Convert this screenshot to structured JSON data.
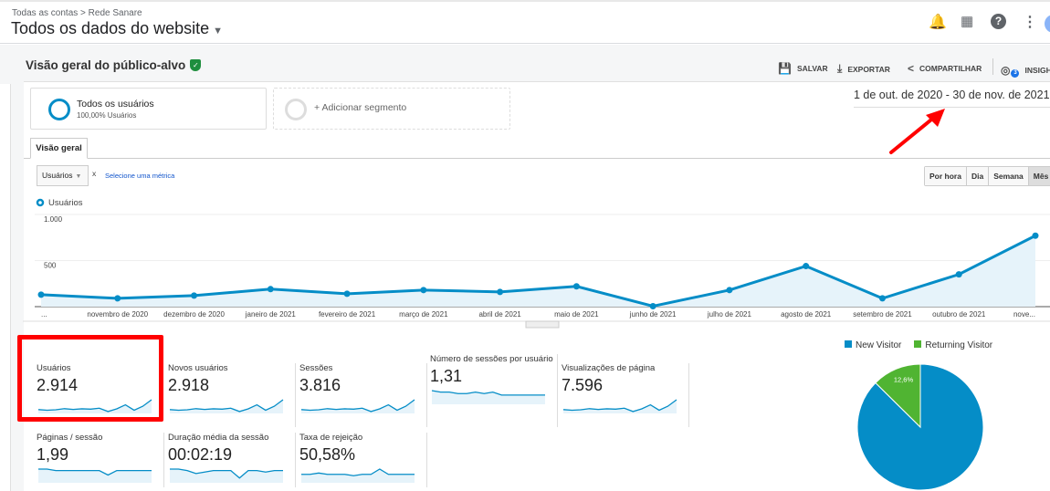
{
  "header": {
    "breadcrumb": "Todas as contas > Rede Sanare",
    "view_title": "Todos os dados do website",
    "icons": [
      "bell-icon",
      "apps-icon",
      "help-icon",
      "more-vert-icon",
      "avatar"
    ]
  },
  "page": {
    "title": "Visão geral do público-alvo",
    "toolbar": {
      "save": "SALVAR",
      "export": "EXPORTAR",
      "share": "COMPARTILHAR",
      "insights": "INSIGHTS",
      "insights_badge": "3"
    }
  },
  "segments": {
    "all_users": "Todos os usuários",
    "all_users_pct": "100,00% Usuários",
    "add": "+ Adicionar segmento"
  },
  "date_range": "1 de out. de 2020 - 30 de nov. de 2021",
  "tabs": [
    {
      "label": "Visão geral",
      "active": true
    }
  ],
  "metric_selector": {
    "selected": "Usuários",
    "remove": "x",
    "second": "Selecione uma métrica"
  },
  "granularity": [
    {
      "label": "Por hora"
    },
    {
      "label": "Dia"
    },
    {
      "label": "Semana"
    },
    {
      "label": "Mês",
      "active": true
    }
  ],
  "colors": {
    "accent": "#058dc7",
    "returning": "#50b432",
    "annotation": "#ff0000"
  },
  "metrics": [
    {
      "label": "Usuários",
      "value": "2.914",
      "highlighted": true
    },
    {
      "label": "Novos usuários",
      "value": "2.918"
    },
    {
      "label": "Sessões",
      "value": "3.816"
    },
    {
      "label": "Número de sessões por usuário",
      "value": "1,31"
    },
    {
      "label": "Visualizações de página",
      "value": "7.596"
    },
    {
      "label": "Páginas / sessão",
      "value": "1,99"
    },
    {
      "label": "Duração média da sessão",
      "value": "00:02:19"
    },
    {
      "label": "Taxa de rejeição",
      "value": "50,58%"
    }
  ],
  "chart_data": [
    {
      "type": "line",
      "legend": "Usuários",
      "categories": [
        "...",
        "novembro de 2020",
        "dezembro de 2020",
        "janeiro de 2021",
        "fevereiro de 2021",
        "março de 2021",
        "abril de 2021",
        "maio de 2021",
        "junho de 2021",
        "julho de 2021",
        "agosto de 2021",
        "setembro de 2021",
        "outubro de 2021",
        "nove..."
      ],
      "series": [
        {
          "name": "Usuários",
          "values": [
            130,
            90,
            120,
            190,
            140,
            180,
            160,
            220,
            5,
            180,
            440,
            90,
            350,
            770
          ]
        }
      ],
      "yticks": [
        "500",
        "1.000"
      ],
      "ylim": [
        0,
        1000
      ],
      "grid": true,
      "area_fill": true
    },
    {
      "type": "pie",
      "legend": [
        "New Visitor",
        "Returning Visitor"
      ],
      "values": [
        87.4,
        12.6
      ],
      "labels": [
        "87,4%",
        "12,6%"
      ],
      "legend_placement": "top"
    }
  ]
}
